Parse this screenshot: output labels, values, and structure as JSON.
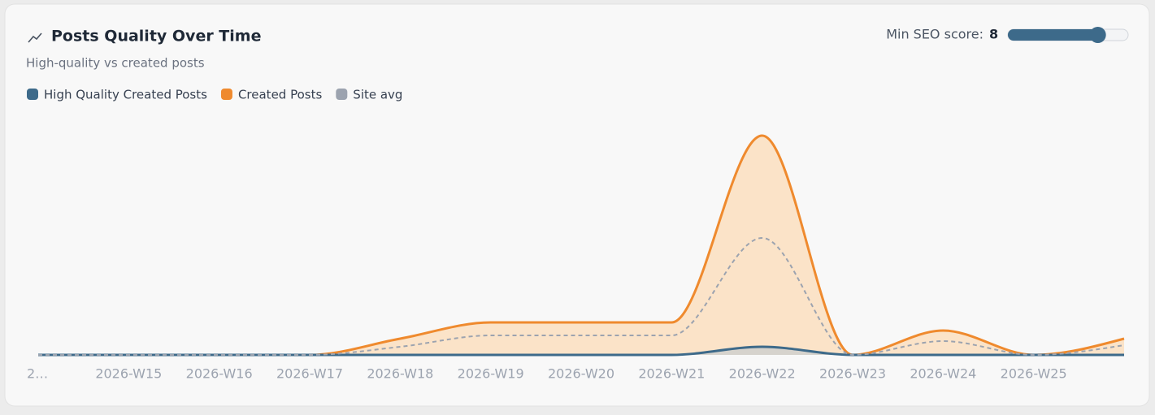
{
  "chart_data": {
    "type": "area",
    "title": "Posts Quality Over Time",
    "subtitle": "High-quality vs created posts",
    "categories": [
      "2…",
      "2026-W15",
      "2026-W16",
      "2026-W17",
      "2026-W18",
      "2026-W19",
      "2026-W20",
      "2026-W21",
      "2026-W22",
      "2026-W23",
      "2026-W24",
      "2026-W25",
      null
    ],
    "series": [
      {
        "name": "High Quality Created Posts",
        "color": "#3d6a8a",
        "values": [
          0,
          0,
          0,
          0,
          0,
          0,
          0,
          0,
          1,
          0,
          0,
          0,
          0
        ]
      },
      {
        "name": "Created Posts",
        "color": "#ef8a2e",
        "values": [
          0,
          0,
          0,
          0,
          2,
          4,
          4,
          4,
          27,
          0,
          3,
          0,
          2
        ]
      },
      {
        "name": "Site avg",
        "color": "#9ca3af",
        "values": [
          0,
          0,
          0,
          0,
          1,
          2.4,
          2.4,
          2.4,
          14.4,
          0,
          1.7,
          0,
          1.2
        ]
      }
    ],
    "ylim": [
      0,
      27
    ],
    "grid": false,
    "legend": "top-left",
    "slider": {
      "label": "Min SEO score:",
      "value": 8,
      "min": 1,
      "max": 10
    }
  }
}
